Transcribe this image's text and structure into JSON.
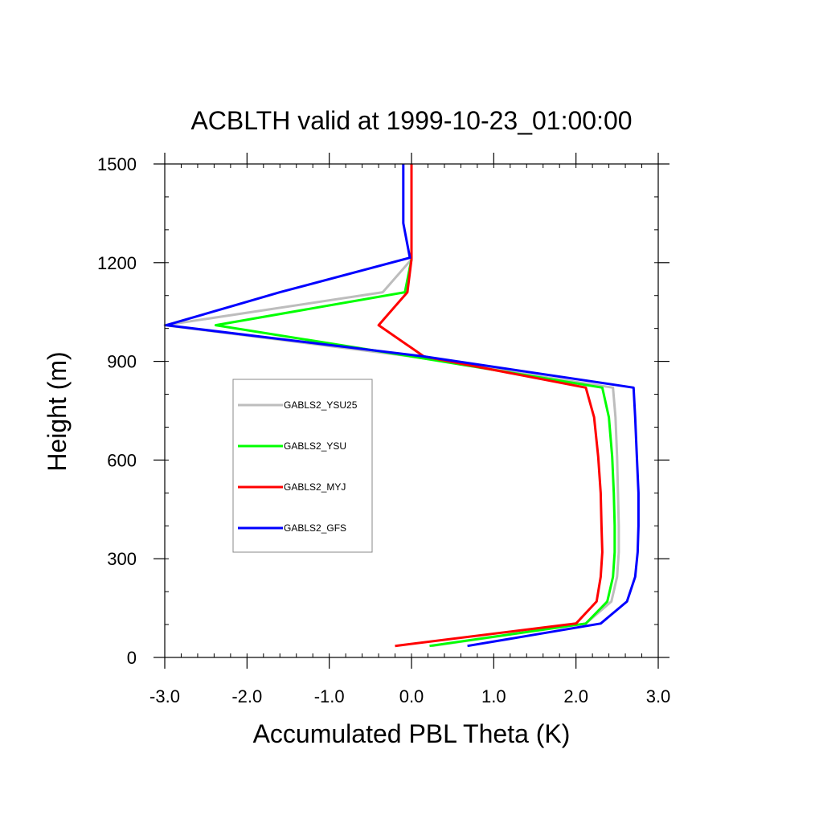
{
  "chart_data": {
    "type": "line",
    "title": "ACBLTH valid at 1999-10-23_01:00:00",
    "xlabel": "Accumulated PBL Theta (K)",
    "ylabel": "Height (m)",
    "xlim": [
      -3.0,
      3.0
    ],
    "ylim": [
      0,
      1500
    ],
    "xticks": [
      -3.0,
      -2.0,
      -1.0,
      0.0,
      1.0,
      2.0,
      3.0
    ],
    "xtick_labels": [
      "-3.0",
      "-2.0",
      "-1.0",
      "0.0",
      "1.0",
      "2.0",
      "3.0"
    ],
    "yticks": [
      0,
      300,
      600,
      900,
      1200,
      1500
    ],
    "ytick_labels": [
      "0",
      "300",
      "600",
      "900",
      "1200",
      "1500"
    ],
    "grid": false,
    "legend_position": "left-middle",
    "series": [
      {
        "name": "GABLS2_YSU25",
        "color": "#bdbdbd",
        "points": [
          [
            0.25,
            35
          ],
          [
            2.12,
            103
          ],
          [
            2.43,
            170
          ],
          [
            2.5,
            245
          ],
          [
            2.52,
            320
          ],
          [
            2.52,
            400
          ],
          [
            2.51,
            500
          ],
          [
            2.5,
            610
          ],
          [
            2.48,
            730
          ],
          [
            2.45,
            820
          ],
          [
            0.0,
            915
          ],
          [
            -3.0,
            1010
          ],
          [
            -0.35,
            1110
          ],
          [
            0.0,
            1210
          ],
          [
            0.0,
            1320
          ],
          [
            0.0,
            1500
          ]
        ]
      },
      {
        "name": "GABLS2_YSU",
        "color": "#00ff00",
        "points": [
          [
            0.22,
            35
          ],
          [
            2.12,
            103
          ],
          [
            2.38,
            170
          ],
          [
            2.45,
            245
          ],
          [
            2.47,
            320
          ],
          [
            2.47,
            400
          ],
          [
            2.46,
            500
          ],
          [
            2.44,
            610
          ],
          [
            2.4,
            730
          ],
          [
            2.32,
            820
          ],
          [
            0.0,
            915
          ],
          [
            -2.38,
            1010
          ],
          [
            -0.08,
            1110
          ],
          [
            0.0,
            1210
          ],
          [
            0.0,
            1320
          ],
          [
            0.0,
            1500
          ]
        ]
      },
      {
        "name": "GABLS2_MYJ",
        "color": "#ff0000",
        "points": [
          [
            -0.2,
            35
          ],
          [
            2.0,
            103
          ],
          [
            2.25,
            170
          ],
          [
            2.3,
            245
          ],
          [
            2.32,
            320
          ],
          [
            2.31,
            400
          ],
          [
            2.3,
            500
          ],
          [
            2.27,
            610
          ],
          [
            2.22,
            730
          ],
          [
            2.12,
            820
          ],
          [
            0.15,
            915
          ],
          [
            -0.4,
            1010
          ],
          [
            -0.05,
            1110
          ],
          [
            0.0,
            1210
          ],
          [
            0.0,
            1320
          ],
          [
            0.0,
            1500
          ]
        ]
      },
      {
        "name": "GABLS2_GFS",
        "color": "#0000ff",
        "points": [
          [
            0.68,
            35
          ],
          [
            2.3,
            103
          ],
          [
            2.62,
            170
          ],
          [
            2.72,
            245
          ],
          [
            2.75,
            320
          ],
          [
            2.76,
            400
          ],
          [
            2.76,
            500
          ],
          [
            2.74,
            610
          ],
          [
            2.72,
            730
          ],
          [
            2.7,
            820
          ],
          [
            0.15,
            915
          ],
          [
            -2.98,
            1010
          ],
          [
            -1.6,
            1110
          ],
          [
            -0.02,
            1215
          ],
          [
            -0.1,
            1320
          ],
          [
            -0.1,
            1500
          ]
        ]
      }
    ]
  }
}
